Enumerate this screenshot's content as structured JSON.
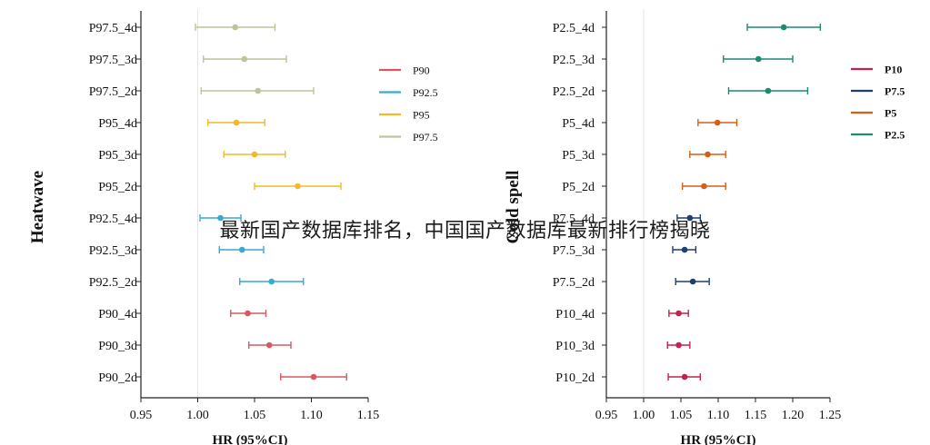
{
  "chart_data": [
    {
      "type": "forest",
      "group_label": "Heatwave",
      "xlabel": "HR (95%CI)",
      "xlim": [
        0.95,
        1.15
      ],
      "xticks": [
        "0.95",
        "1.00",
        "1.05",
        "1.10",
        "1.15"
      ],
      "reference_line": 1.0,
      "legend_placement": "right",
      "legend": [
        {
          "name": "P90",
          "color": "#d9585f"
        },
        {
          "name": "P92.5",
          "color": "#3aa9cf"
        },
        {
          "name": "P95",
          "color": "#f2b82c"
        },
        {
          "name": "P97.5",
          "color": "#bfc498"
        }
      ],
      "rows": [
        {
          "label": "P97.5_4d",
          "group": "P97.5",
          "hr": 1.033,
          "lo": 0.998,
          "hi": 1.068
        },
        {
          "label": "P97.5_3d",
          "group": "P97.5",
          "hr": 1.041,
          "lo": 1.005,
          "hi": 1.078
        },
        {
          "label": "P97.5_2d",
          "group": "P97.5",
          "hr": 1.053,
          "lo": 1.003,
          "hi": 1.102
        },
        {
          "label": "P95_4d",
          "group": "P95",
          "hr": 1.034,
          "lo": 1.009,
          "hi": 1.059
        },
        {
          "label": "P95_3d",
          "group": "P95",
          "hr": 1.05,
          "lo": 1.023,
          "hi": 1.077
        },
        {
          "label": "P95_2d",
          "group": "P95",
          "hr": 1.088,
          "lo": 1.05,
          "hi": 1.126
        },
        {
          "label": "P92.5_4d",
          "group": "P92.5",
          "hr": 1.02,
          "lo": 1.002,
          "hi": 1.038
        },
        {
          "label": "P92.5_3d",
          "group": "P92.5",
          "hr": 1.039,
          "lo": 1.019,
          "hi": 1.058
        },
        {
          "label": "P92.5_2d",
          "group": "P92.5",
          "hr": 1.065,
          "lo": 1.037,
          "hi": 1.093
        },
        {
          "label": "P90_4d",
          "group": "P90",
          "hr": 1.044,
          "lo": 1.029,
          "hi": 1.06
        },
        {
          "label": "P90_3d",
          "group": "P90",
          "hr": 1.063,
          "lo": 1.045,
          "hi": 1.082
        },
        {
          "label": "P90_2d",
          "group": "P90",
          "hr": 1.102,
          "lo": 1.073,
          "hi": 1.131
        }
      ]
    },
    {
      "type": "forest",
      "group_label": "Cold spell",
      "xlabel": "HR (95%CI)",
      "xlim": [
        0.95,
        1.25
      ],
      "xticks": [
        "0.95",
        "1.00",
        "1.05",
        "1.10",
        "1.15",
        "1.20",
        "1.25"
      ],
      "reference_line": 1.0,
      "legend_placement": "right",
      "legend": [
        {
          "name": "P10",
          "color": "#c0234f"
        },
        {
          "name": "P7.5",
          "color": "#1f3f73"
        },
        {
          "name": "P5",
          "color": "#d2601a"
        },
        {
          "name": "P2.5",
          "color": "#1d8a72"
        }
      ],
      "rows": [
        {
          "label": "P2.5_4d",
          "group": "P2.5",
          "hr": 1.188,
          "lo": 1.139,
          "hi": 1.237
        },
        {
          "label": "P2.5_3d",
          "group": "P2.5",
          "hr": 1.154,
          "lo": 1.107,
          "hi": 1.2
        },
        {
          "label": "P2.5_2d",
          "group": "P2.5",
          "hr": 1.167,
          "lo": 1.114,
          "hi": 1.22
        },
        {
          "label": "P5_4d",
          "group": "P5",
          "hr": 1.099,
          "lo": 1.073,
          "hi": 1.125
        },
        {
          "label": "P5_3d",
          "group": "P5",
          "hr": 1.086,
          "lo": 1.062,
          "hi": 1.11
        },
        {
          "label": "P5_2d",
          "group": "P5",
          "hr": 1.081,
          "lo": 1.052,
          "hi": 1.11
        },
        {
          "label": "P7.5_4d",
          "group": "P7.5",
          "hr": 1.062,
          "lo": 1.045,
          "hi": 1.076
        },
        {
          "label": "P7.5_3d",
          "group": "P7.5",
          "hr": 1.055,
          "lo": 1.039,
          "hi": 1.07
        },
        {
          "label": "P7.5_2d",
          "group": "P7.5",
          "hr": 1.066,
          "lo": 1.043,
          "hi": 1.088
        },
        {
          "label": "P10_4d",
          "group": "P10",
          "hr": 1.047,
          "lo": 1.034,
          "hi": 1.06
        },
        {
          "label": "P10_3d",
          "group": "P10",
          "hr": 1.047,
          "lo": 1.032,
          "hi": 1.062
        },
        {
          "label": "P10_2d",
          "group": "P10",
          "hr": 1.055,
          "lo": 1.033,
          "hi": 1.076
        }
      ]
    }
  ],
  "overlay": {
    "text": "最新国产数据库排名，中国国产数据库最新排行榜揭晓"
  }
}
